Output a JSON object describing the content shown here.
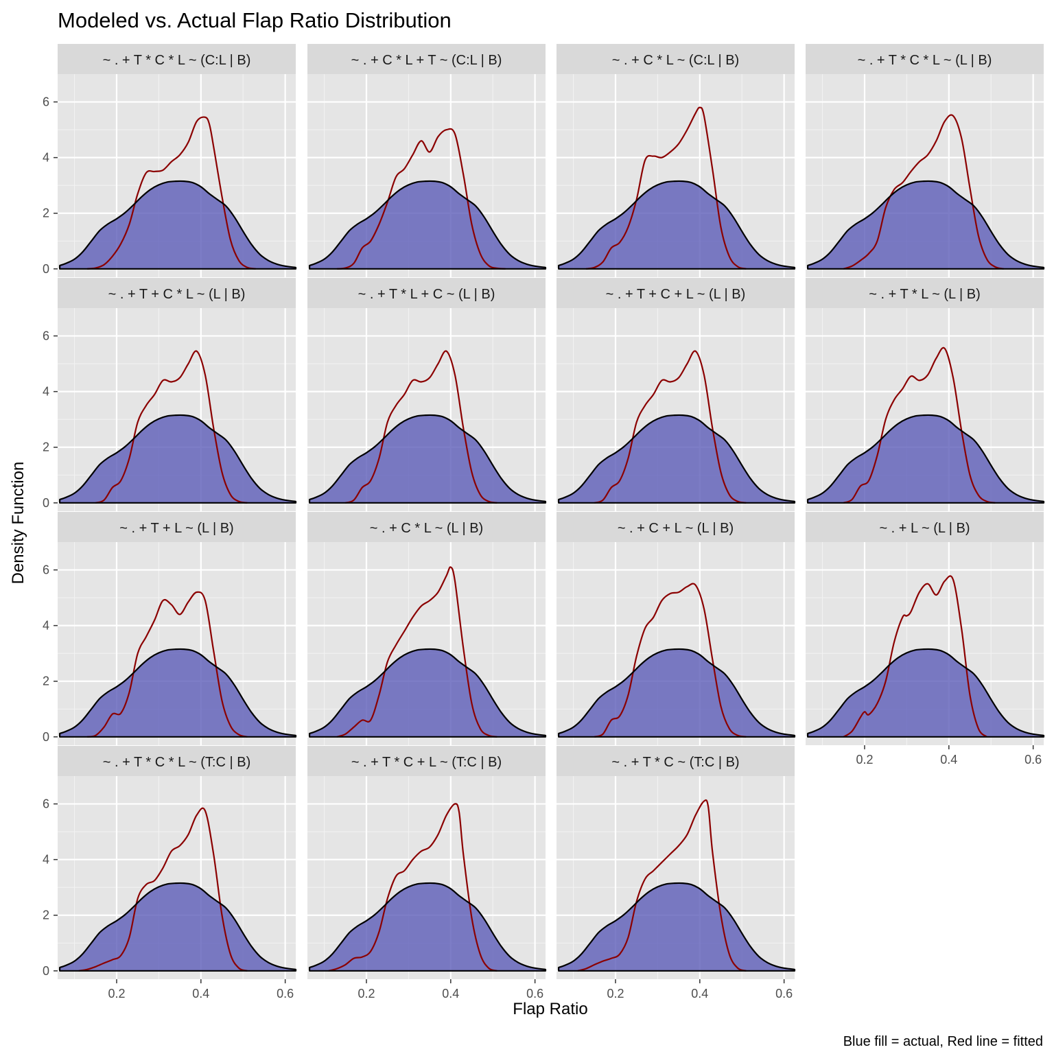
{
  "chart_data": {
    "type": "area",
    "title": "Modeled vs. Actual Flap Ratio Distribution",
    "xlabel": "Flap Ratio",
    "ylabel": "Density Function",
    "caption": "Blue fill = actual, Red line = fitted",
    "xlim": [
      0.06,
      0.625
    ],
    "ylim": [
      -0.3,
      7.0
    ],
    "x_ticks": [
      0.2,
      0.4,
      0.6
    ],
    "x_tick_labels": [
      "0.2",
      "0.4",
      "0.6"
    ],
    "y_ticks": [
      0,
      2,
      4,
      6
    ],
    "y_tick_labels": [
      "0",
      "2",
      "4",
      "6"
    ],
    "layout": "facet-wrap-4-columns",
    "grid": true,
    "colors": {
      "panel_background": "#e5e5e5",
      "strip_background": "#d9d9d9",
      "actual_fill": "#5c5cb8",
      "actual_outline": "#000000",
      "fitted_line": "#8b0000"
    },
    "actual": {
      "x": [
        0.065,
        0.08,
        0.1,
        0.12,
        0.14,
        0.16,
        0.18,
        0.2,
        0.22,
        0.24,
        0.26,
        0.28,
        0.3,
        0.32,
        0.34,
        0.36,
        0.38,
        0.4,
        0.42,
        0.44,
        0.46,
        0.48,
        0.5,
        0.52,
        0.54,
        0.56,
        0.58,
        0.6,
        0.625
      ],
      "y": [
        0.12,
        0.2,
        0.35,
        0.62,
        1.0,
        1.38,
        1.62,
        1.8,
        2.02,
        2.3,
        2.6,
        2.85,
        3.02,
        3.12,
        3.15,
        3.15,
        3.1,
        2.95,
        2.7,
        2.48,
        2.25,
        1.85,
        1.35,
        0.88,
        0.52,
        0.3,
        0.17,
        0.1,
        0.05
      ]
    },
    "panels": [
      {
        "label": "~ . + T * C * L ~ (C:L | B)",
        "fitted": {
          "x": [
            0.13,
            0.15,
            0.17,
            0.19,
            0.21,
            0.23,
            0.25,
            0.27,
            0.29,
            0.31,
            0.33,
            0.35,
            0.37,
            0.39,
            0.41,
            0.42,
            0.43,
            0.45,
            0.47,
            0.49,
            0.51,
            0.53
          ],
          "y": [
            0,
            0.03,
            0.15,
            0.45,
            0.9,
            1.6,
            2.7,
            3.45,
            3.5,
            3.55,
            3.85,
            4.1,
            4.55,
            5.3,
            5.45,
            5.2,
            4.4,
            2.6,
            1.05,
            0.3,
            0.05,
            0
          ]
        }
      },
      {
        "label": "~ . + C * L + T ~ (C:L | B)",
        "fitted": {
          "x": [
            0.13,
            0.15,
            0.17,
            0.19,
            0.21,
            0.23,
            0.25,
            0.27,
            0.29,
            0.31,
            0.33,
            0.35,
            0.37,
            0.39,
            0.41,
            0.43,
            0.45,
            0.47,
            0.49,
            0.51,
            0.53
          ],
          "y": [
            0,
            0.03,
            0.2,
            0.75,
            1.0,
            1.6,
            2.4,
            3.3,
            3.6,
            4.1,
            4.6,
            4.2,
            4.75,
            5.0,
            4.85,
            3.4,
            1.6,
            0.55,
            0.12,
            0.02,
            0
          ]
        }
      },
      {
        "label": "~ . + C * L ~ (C:L | B)",
        "fitted": {
          "x": [
            0.13,
            0.15,
            0.17,
            0.19,
            0.21,
            0.23,
            0.25,
            0.27,
            0.29,
            0.31,
            0.33,
            0.35,
            0.37,
            0.39,
            0.4,
            0.41,
            0.43,
            0.45,
            0.47,
            0.49,
            0.51
          ],
          "y": [
            0,
            0.05,
            0.25,
            0.75,
            0.95,
            1.5,
            2.5,
            3.9,
            4.05,
            4.0,
            4.2,
            4.5,
            5.0,
            5.6,
            5.8,
            5.5,
            3.6,
            1.5,
            0.45,
            0.08,
            0
          ]
        }
      },
      {
        "label": "~ . + T * C * L ~ (L | B)",
        "fitted": {
          "x": [
            0.15,
            0.17,
            0.19,
            0.21,
            0.23,
            0.25,
            0.27,
            0.29,
            0.31,
            0.33,
            0.35,
            0.37,
            0.39,
            0.41,
            0.43,
            0.45,
            0.47,
            0.49,
            0.51,
            0.53
          ],
          "y": [
            0,
            0.1,
            0.3,
            0.55,
            1.0,
            2.2,
            2.85,
            3.1,
            3.5,
            3.85,
            4.1,
            4.6,
            5.3,
            5.5,
            4.7,
            2.9,
            1.2,
            0.35,
            0.07,
            0
          ]
        }
      },
      {
        "label": "~ . + T + C * L ~ (L | B)",
        "fitted": {
          "x": [
            0.15,
            0.17,
            0.19,
            0.21,
            0.23,
            0.25,
            0.27,
            0.29,
            0.31,
            0.33,
            0.35,
            0.37,
            0.39,
            0.41,
            0.43,
            0.45,
            0.47,
            0.49,
            0.51
          ],
          "y": [
            0,
            0.1,
            0.55,
            0.8,
            1.6,
            2.9,
            3.5,
            3.9,
            4.4,
            4.35,
            4.5,
            5.0,
            5.45,
            4.6,
            2.7,
            1.1,
            0.3,
            0.05,
            0
          ]
        }
      },
      {
        "label": "~ . + T * L + C ~ (L | B)",
        "fitted": {
          "x": [
            0.15,
            0.17,
            0.19,
            0.21,
            0.23,
            0.25,
            0.27,
            0.29,
            0.31,
            0.33,
            0.35,
            0.37,
            0.39,
            0.41,
            0.43,
            0.45,
            0.47,
            0.49,
            0.51
          ],
          "y": [
            0,
            0.1,
            0.55,
            0.8,
            1.6,
            2.9,
            3.5,
            3.9,
            4.4,
            4.35,
            4.5,
            5.0,
            5.45,
            4.6,
            2.7,
            1.1,
            0.3,
            0.05,
            0
          ]
        }
      },
      {
        "label": "~ . + T + C + L ~ (L | B)",
        "fitted": {
          "x": [
            0.15,
            0.17,
            0.19,
            0.21,
            0.23,
            0.25,
            0.27,
            0.29,
            0.31,
            0.33,
            0.35,
            0.37,
            0.39,
            0.41,
            0.43,
            0.45,
            0.47,
            0.49,
            0.51
          ],
          "y": [
            0,
            0.1,
            0.55,
            0.8,
            1.6,
            2.9,
            3.5,
            3.9,
            4.4,
            4.35,
            4.5,
            5.0,
            5.45,
            4.6,
            2.7,
            1.1,
            0.3,
            0.05,
            0
          ]
        }
      },
      {
        "label": "~ . + T * L ~ (L | B)",
        "fitted": {
          "x": [
            0.15,
            0.17,
            0.19,
            0.21,
            0.23,
            0.25,
            0.27,
            0.29,
            0.31,
            0.33,
            0.35,
            0.37,
            0.39,
            0.41,
            0.43,
            0.45,
            0.47,
            0.49,
            0.51
          ],
          "y": [
            0,
            0.12,
            0.6,
            0.8,
            1.7,
            3.0,
            3.7,
            4.1,
            4.55,
            4.4,
            4.6,
            5.2,
            5.55,
            4.5,
            2.6,
            1.0,
            0.28,
            0.05,
            0
          ]
        }
      },
      {
        "label": "~ . + T + L ~ (L | B)",
        "fitted": {
          "x": [
            0.13,
            0.15,
            0.17,
            0.19,
            0.21,
            0.23,
            0.25,
            0.27,
            0.29,
            0.31,
            0.33,
            0.35,
            0.37,
            0.39,
            0.41,
            0.43,
            0.45,
            0.47,
            0.49,
            0.51
          ],
          "y": [
            0,
            0.05,
            0.35,
            0.82,
            0.85,
            1.6,
            3.0,
            3.6,
            4.2,
            4.9,
            4.75,
            4.4,
            4.85,
            5.2,
            4.9,
            3.1,
            1.3,
            0.4,
            0.08,
            0
          ]
        }
      },
      {
        "label": "~ . + C * L ~ (L | B)",
        "fitted": {
          "x": [
            0.13,
            0.15,
            0.17,
            0.19,
            0.21,
            0.23,
            0.25,
            0.27,
            0.29,
            0.31,
            0.33,
            0.35,
            0.37,
            0.39,
            0.4,
            0.41,
            0.43,
            0.45,
            0.47,
            0.49,
            0.51
          ],
          "y": [
            0,
            0.1,
            0.35,
            0.6,
            0.6,
            1.5,
            2.7,
            3.3,
            3.8,
            4.3,
            4.7,
            4.9,
            5.2,
            5.8,
            6.1,
            5.6,
            3.2,
            1.2,
            0.3,
            0.05,
            0
          ]
        }
      },
      {
        "label": "~ . + C + L ~ (L | B)",
        "fitted": {
          "x": [
            0.15,
            0.17,
            0.19,
            0.21,
            0.23,
            0.25,
            0.27,
            0.29,
            0.31,
            0.33,
            0.35,
            0.37,
            0.39,
            0.41,
            0.43,
            0.45,
            0.47,
            0.49,
            0.51
          ],
          "y": [
            0,
            0.1,
            0.6,
            0.75,
            1.5,
            2.9,
            3.9,
            4.3,
            4.9,
            5.15,
            5.2,
            5.4,
            5.45,
            4.6,
            2.8,
            1.1,
            0.3,
            0.05,
            0
          ]
        }
      },
      {
        "label": "~ . + L ~ (L | B)",
        "fitted": {
          "x": [
            0.15,
            0.17,
            0.19,
            0.2,
            0.21,
            0.23,
            0.25,
            0.27,
            0.29,
            0.3,
            0.31,
            0.33,
            0.35,
            0.37,
            0.39,
            0.41,
            0.43,
            0.45,
            0.47,
            0.49
          ],
          "y": [
            0,
            0.2,
            0.7,
            0.9,
            0.8,
            1.2,
            2.0,
            3.4,
            4.3,
            4.35,
            4.5,
            5.2,
            5.5,
            5.1,
            5.6,
            5.65,
            3.9,
            1.5,
            0.3,
            0
          ]
        }
      },
      {
        "label": "~ . + T * C * L ~ (T:C | B)",
        "fitted": {
          "x": [
            0.11,
            0.13,
            0.15,
            0.17,
            0.19,
            0.21,
            0.23,
            0.25,
            0.27,
            0.29,
            0.31,
            0.33,
            0.35,
            0.37,
            0.39,
            0.41,
            0.43,
            0.45,
            0.47,
            0.49,
            0.51
          ],
          "y": [
            0,
            0.05,
            0.15,
            0.28,
            0.4,
            0.55,
            1.2,
            2.6,
            3.1,
            3.25,
            3.7,
            4.3,
            4.5,
            4.9,
            5.6,
            5.75,
            4.2,
            2.0,
            0.6,
            0.1,
            0
          ]
        }
      },
      {
        "label": "~ . + T * C + L ~ (T:C | B)",
        "fitted": {
          "x": [
            0.11,
            0.13,
            0.15,
            0.17,
            0.19,
            0.21,
            0.23,
            0.25,
            0.27,
            0.29,
            0.31,
            0.33,
            0.35,
            0.37,
            0.39,
            0.41,
            0.42,
            0.43,
            0.45,
            0.47,
            0.49,
            0.51
          ],
          "y": [
            0,
            0.08,
            0.22,
            0.45,
            0.5,
            0.7,
            1.4,
            2.6,
            3.4,
            3.6,
            4.0,
            4.3,
            4.45,
            4.9,
            5.6,
            6.0,
            5.7,
            4.2,
            1.9,
            0.6,
            0.1,
            0
          ]
        }
      },
      {
        "label": "~ . + T * C ~ (T:C | B)",
        "fitted": {
          "x": [
            0.11,
            0.13,
            0.15,
            0.17,
            0.19,
            0.21,
            0.23,
            0.25,
            0.27,
            0.29,
            0.31,
            0.33,
            0.35,
            0.37,
            0.39,
            0.41,
            0.42,
            0.43,
            0.45,
            0.47,
            0.49,
            0.51
          ],
          "y": [
            0,
            0.08,
            0.22,
            0.35,
            0.45,
            0.6,
            1.2,
            2.5,
            3.3,
            3.6,
            3.9,
            4.2,
            4.5,
            4.9,
            5.6,
            6.1,
            5.9,
            4.3,
            2.0,
            0.6,
            0.1,
            0
          ]
        }
      }
    ]
  }
}
